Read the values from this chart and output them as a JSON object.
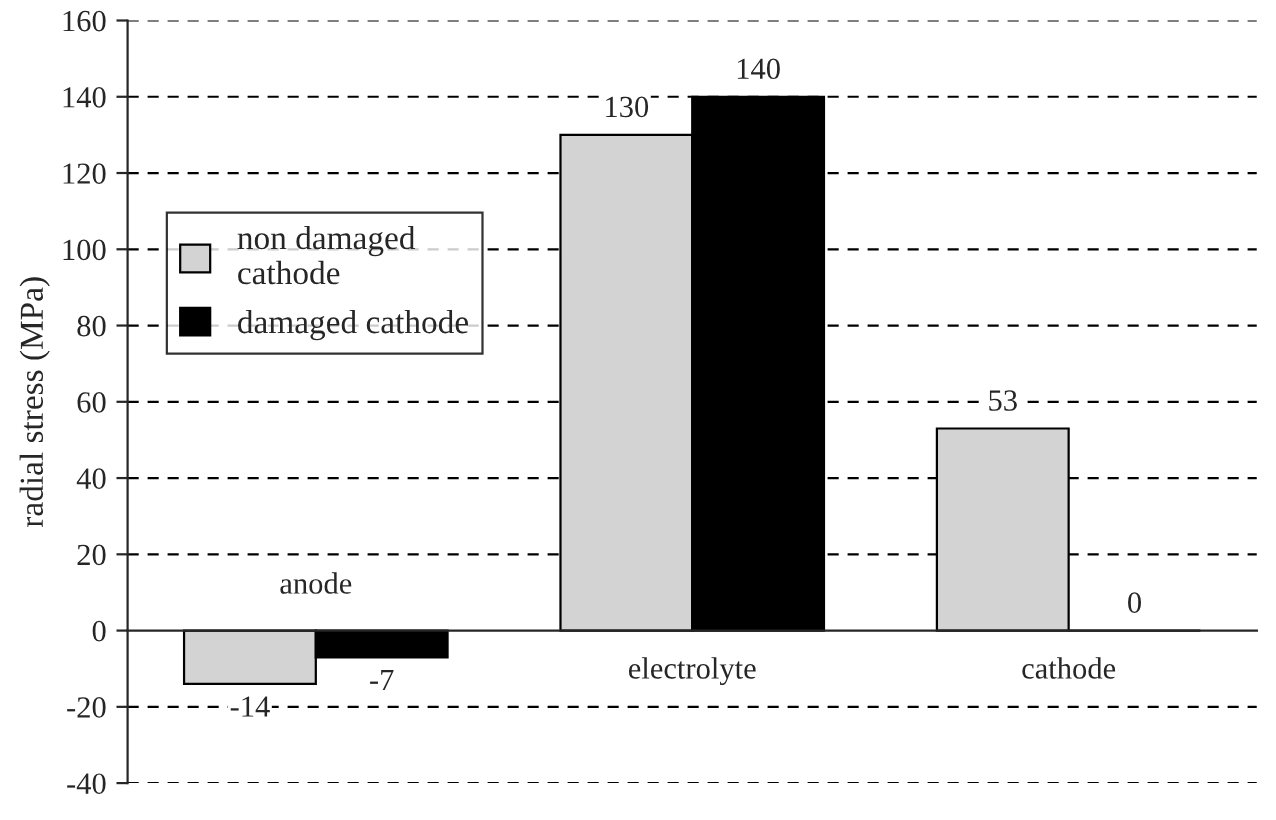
{
  "chart_data": {
    "type": "bar",
    "ylabel": "radial stress (MPa)",
    "categories": [
      "anode",
      "electrolyte",
      "cathode"
    ],
    "series": [
      {
        "name": "non damaged\ncathode",
        "color": "#d3d3d3",
        "values": [
          -14,
          130,
          53
        ]
      },
      {
        "name": "damaged cathode",
        "color": "#000000",
        "values": [
          -7,
          140,
          0
        ]
      }
    ],
    "ylim": [
      -40,
      160
    ],
    "yticks": [
      -40,
      -20,
      0,
      20,
      40,
      60,
      80,
      100,
      120,
      140,
      160
    ],
    "grid": "y",
    "legend": "top left",
    "data_labels": true
  }
}
